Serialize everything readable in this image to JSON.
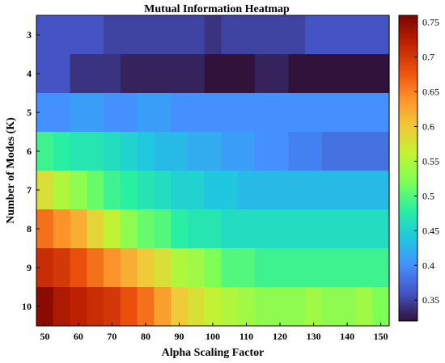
{
  "chart_data": {
    "type": "heatmap",
    "title": "Mutual Information Heatmap",
    "xlabel": "Alpha Scaling Factor",
    "ylabel": "Number of Modes (K)",
    "x_values": [
      50,
      55,
      60,
      65,
      70,
      75,
      80,
      85,
      90,
      95,
      100,
      105,
      110,
      115,
      120,
      125,
      130,
      135,
      140,
      145,
      150
    ],
    "y_values": [
      3,
      4,
      5,
      6,
      7,
      8,
      9,
      10
    ],
    "x_ticks": [
      "50",
      "60",
      "70",
      "80",
      "90",
      "100",
      "110",
      "120",
      "130",
      "140",
      "150"
    ],
    "y_ticks": [
      "3",
      "4",
      "5",
      "6",
      "7",
      "8",
      "9",
      "10"
    ],
    "colorbar": {
      "min": 0.32,
      "max": 0.76,
      "ticks": [
        "0.35",
        "0.4",
        "0.45",
        "0.5",
        "0.55",
        "0.6",
        "0.65",
        "0.7",
        "0.75"
      ],
      "colormap": [
        "#30123b",
        "#4454c4",
        "#4490fe",
        "#1fc8de",
        "#29efa2",
        "#7dff56",
        "#c1f334",
        "#f1ca3a",
        "#fe922a",
        "#ea4f0d",
        "#be2102",
        "#7a0403"
      ]
    },
    "z": [
      [
        0.36,
        0.36,
        0.36,
        0.36,
        0.35,
        0.35,
        0.35,
        0.35,
        0.35,
        0.35,
        0.34,
        0.35,
        0.35,
        0.35,
        0.35,
        0.35,
        0.36,
        0.36,
        0.36,
        0.36,
        0.36
      ],
      [
        0.36,
        0.36,
        0.34,
        0.34,
        0.34,
        0.33,
        0.33,
        0.33,
        0.33,
        0.33,
        0.32,
        0.32,
        0.32,
        0.33,
        0.33,
        0.32,
        0.32,
        0.32,
        0.32,
        0.32,
        0.32
      ],
      [
        0.4,
        0.4,
        0.41,
        0.41,
        0.4,
        0.4,
        0.41,
        0.41,
        0.4,
        0.4,
        0.4,
        0.4,
        0.4,
        0.4,
        0.4,
        0.4,
        0.4,
        0.4,
        0.4,
        0.4,
        0.4
      ],
      [
        0.49,
        0.48,
        0.47,
        0.47,
        0.46,
        0.45,
        0.44,
        0.43,
        0.43,
        0.42,
        0.42,
        0.41,
        0.41,
        0.4,
        0.4,
        0.39,
        0.39,
        0.38,
        0.38,
        0.38,
        0.38
      ],
      [
        0.58,
        0.55,
        0.53,
        0.51,
        0.49,
        0.48,
        0.47,
        0.46,
        0.45,
        0.45,
        0.44,
        0.44,
        0.43,
        0.43,
        0.43,
        0.43,
        0.43,
        0.43,
        0.43,
        0.43,
        0.43
      ],
      [
        0.66,
        0.64,
        0.62,
        0.59,
        0.56,
        0.53,
        0.51,
        0.5,
        0.48,
        0.47,
        0.47,
        0.46,
        0.46,
        0.46,
        0.46,
        0.46,
        0.46,
        0.46,
        0.46,
        0.46,
        0.46
      ],
      [
        0.71,
        0.7,
        0.68,
        0.66,
        0.64,
        0.62,
        0.6,
        0.58,
        0.55,
        0.54,
        0.52,
        0.5,
        0.5,
        0.49,
        0.49,
        0.49,
        0.49,
        0.49,
        0.49,
        0.49,
        0.49
      ],
      [
        0.75,
        0.73,
        0.72,
        0.71,
        0.7,
        0.68,
        0.66,
        0.63,
        0.6,
        0.58,
        0.56,
        0.55,
        0.54,
        0.53,
        0.53,
        0.53,
        0.54,
        0.53,
        0.53,
        0.54,
        0.52
      ]
    ]
  }
}
